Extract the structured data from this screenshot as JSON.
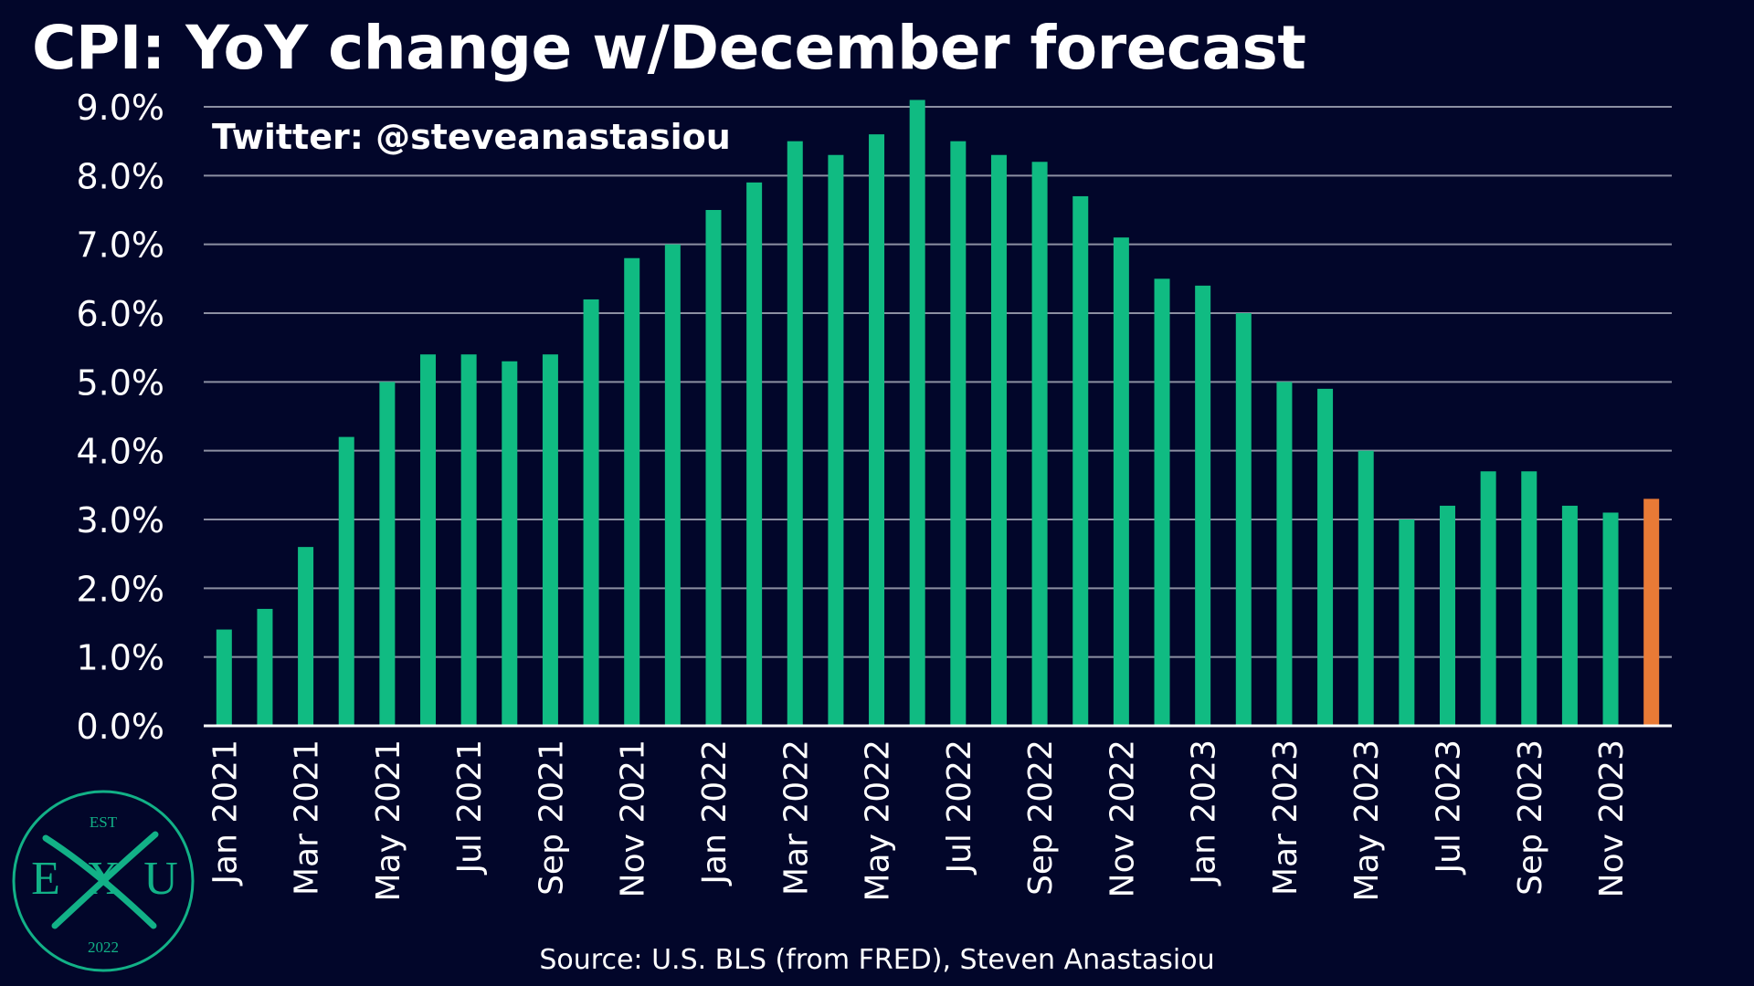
{
  "title": "CPI: YoY change w/December forecast",
  "source_text": "Source: U.S. BLS (from FRED), Steven Anastasiou",
  "logo": {
    "top_text": "EST",
    "left_letter": "E",
    "center_letter": "X",
    "right_letter": "U",
    "bottom_text": "2022"
  },
  "colors": {
    "background": "#02062a",
    "actual_bar": "#10bb82",
    "forecast_bar": "#e97a36",
    "grid": "#8c8fa2",
    "text": "#ffffff",
    "logo": "#12b187"
  },
  "chart_data": {
    "type": "bar",
    "title": "CPI: YoY change w/December forecast",
    "annotation": "Twitter: @steveanastasiou",
    "xlabel": "",
    "ylabel": "",
    "ylim": [
      0,
      9
    ],
    "y_ticks": [
      "0.0%",
      "1.0%",
      "2.0%",
      "3.0%",
      "4.0%",
      "5.0%",
      "6.0%",
      "7.0%",
      "8.0%",
      "9.0%"
    ],
    "grid": true,
    "categories": [
      "Jan 2021",
      "Feb 2021",
      "Mar 2021",
      "Apr 2021",
      "May 2021",
      "Jun 2021",
      "Jul 2021",
      "Aug 2021",
      "Sep 2021",
      "Oct 2021",
      "Nov 2021",
      "Dec 2021",
      "Jan 2022",
      "Feb 2022",
      "Mar 2022",
      "Apr 2022",
      "May 2022",
      "Jun 2022",
      "Jul 2022",
      "Aug 2022",
      "Sep 2022",
      "Oct 2022",
      "Nov 2022",
      "Dec 2022",
      "Jan 2023",
      "Feb 2023",
      "Mar 2023",
      "Apr 2023",
      "May 2023",
      "Jun 2023",
      "Jul 2023",
      "Aug 2023",
      "Sep 2023",
      "Oct 2023",
      "Nov 2023",
      "Dec 2023"
    ],
    "tick_labels": [
      "Jan 2021",
      "Mar 2021",
      "May 2021",
      "Jul 2021",
      "Sep 2021",
      "Nov 2021",
      "Jan 2022",
      "Mar 2022",
      "May 2022",
      "Jul 2022",
      "Sep 2022",
      "Nov 2022",
      "Jan 2023",
      "Mar 2023",
      "May 2023",
      "Jul 2023",
      "Sep 2023",
      "Nov 2023"
    ],
    "values": [
      1.4,
      1.7,
      2.6,
      4.2,
      5.0,
      5.4,
      5.4,
      5.3,
      5.4,
      6.2,
      6.8,
      7.0,
      7.5,
      7.9,
      8.5,
      8.3,
      8.6,
      9.1,
      8.5,
      8.3,
      8.2,
      7.7,
      7.1,
      6.5,
      6.4,
      6.0,
      5.0,
      4.9,
      4.0,
      3.0,
      3.2,
      3.7,
      3.7,
      3.2,
      3.1,
      3.3
    ],
    "forecast_flags": [
      false,
      false,
      false,
      false,
      false,
      false,
      false,
      false,
      false,
      false,
      false,
      false,
      false,
      false,
      false,
      false,
      false,
      false,
      false,
      false,
      false,
      false,
      false,
      false,
      false,
      false,
      false,
      false,
      false,
      false,
      false,
      false,
      false,
      false,
      false,
      true
    ]
  }
}
